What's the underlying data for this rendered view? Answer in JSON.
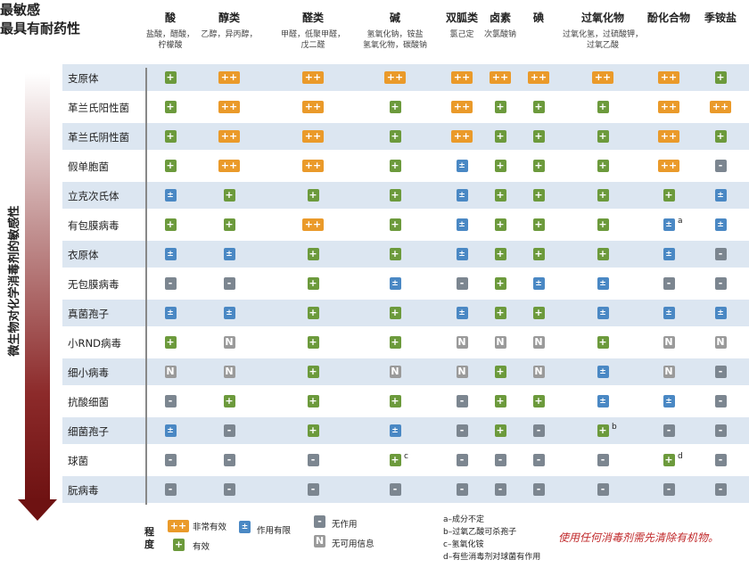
{
  "header": {
    "most_sensitive": "最敏感",
    "most_resistant": "最具有耐药性",
    "axis_label": "微生物对化学消毒剂的敏感性"
  },
  "columns": [
    {
      "title": "酸",
      "sub": "盐酸，醋酸，\n柠檬酸"
    },
    {
      "title": "醇类",
      "sub": "乙醇，异丙醇，"
    },
    {
      "title": "醛类",
      "sub": "甲醛，低聚甲醛，\n戊二醛"
    },
    {
      "title": "碱",
      "sub": "氢氧化钠，铵盐\n氢氧化物，碳酸钠"
    },
    {
      "title": "双胍类",
      "sub": "氯己定"
    },
    {
      "title": "卤素",
      "sub": "次氯酸钠"
    },
    {
      "title": "碘",
      "sub": ""
    },
    {
      "title": "过氧化物",
      "sub": "过氧化氢，过硫酸钾，\n过氧乙酸"
    },
    {
      "title": "酚化合物",
      "sub": ""
    },
    {
      "title": "季铵盐",
      "sub": ""
    }
  ],
  "chart_data": {
    "type": "table",
    "rows": [
      "支原体",
      "革兰氏阳性菌",
      "革兰氏阴性菌",
      "假单胞菌",
      "立克次氏体",
      "有包膜病毒",
      "衣原体",
      "无包膜病毒",
      "真菌孢子",
      "小RND病毒",
      "细小病毒",
      "抗酸细菌",
      "细菌孢子",
      "球菌",
      "朊病毒"
    ],
    "columns": [
      "酸",
      "醇类",
      "醛类",
      "碱",
      "双胍类",
      "卤素",
      "碘",
      "过氧化物",
      "酚化合物",
      "季铵盐"
    ],
    "values": [
      [
        "+",
        "++",
        "++",
        "++",
        "++",
        "++",
        "++",
        "++",
        "++",
        "+"
      ],
      [
        "+",
        "++",
        "++",
        "+",
        "++",
        "+",
        "+",
        "+",
        "++",
        "++"
      ],
      [
        "+",
        "++",
        "++",
        "+",
        "++",
        "+",
        "+",
        "+",
        "++",
        "+"
      ],
      [
        "+",
        "++",
        "++",
        "+",
        "±",
        "+",
        "+",
        "+",
        "++",
        "-"
      ],
      [
        "±",
        "+",
        "+",
        "+",
        "±",
        "+",
        "+",
        "+",
        "+",
        "±"
      ],
      [
        "+",
        "+",
        "++",
        "+",
        "±",
        "+",
        "+",
        "+",
        "±",
        "±"
      ],
      [
        "±",
        "±",
        "+",
        "+",
        "±",
        "+",
        "+",
        "+",
        "±",
        "-"
      ],
      [
        "-",
        "-",
        "+",
        "±",
        "-",
        "+",
        "±",
        "±",
        "-",
        "-"
      ],
      [
        "±",
        "±",
        "+",
        "+",
        "±",
        "+",
        "+",
        "±",
        "±",
        "±"
      ],
      [
        "+",
        "N",
        "+",
        "+",
        "N",
        "N",
        "N",
        "+",
        "N",
        "N"
      ],
      [
        "N",
        "N",
        "+",
        "N",
        "N",
        "+",
        "N",
        "±",
        "N",
        "-"
      ],
      [
        "-",
        "+",
        "+",
        "+",
        "-",
        "+",
        "+",
        "±",
        "±",
        "-"
      ],
      [
        "±",
        "-",
        "+",
        "±",
        "-",
        "+",
        "-",
        "+",
        "-",
        "-"
      ],
      [
        "-",
        "-",
        "-",
        "+",
        "-",
        "-",
        "-",
        "-",
        "+",
        "-"
      ],
      [
        "-",
        "-",
        "-",
        "-",
        "-",
        "-",
        "-",
        "-",
        "-",
        "-"
      ]
    ],
    "annotations": [
      {
        "row": "有包膜病毒",
        "column": "酚化合物",
        "mark": "a"
      },
      {
        "row": "细菌孢子",
        "column": "过氧化物",
        "mark": "b"
      },
      {
        "row": "球菌",
        "column": "碱",
        "mark": "c"
      },
      {
        "row": "球菌",
        "column": "酚化合物",
        "mark": "d"
      }
    ]
  },
  "legend": {
    "title": "程度",
    "items": [
      {
        "symbol": "++",
        "label": "非常有效"
      },
      {
        "symbol": "+",
        "label": "有效"
      },
      {
        "symbol": "±",
        "label": "作用有限"
      },
      {
        "symbol": "-",
        "label": "无作用"
      },
      {
        "symbol": "N",
        "label": "无可用信息"
      }
    ]
  },
  "notes": [
    "a–成分不定",
    "b–过氧乙酸可杀孢子",
    "c–氢氧化铵",
    "d–有些消毒剂对球菌有作用"
  ],
  "red_note": "使用任何消毒剂需先清除有机物。",
  "colors": {
    "very_effective": "#ea9a2a",
    "effective": "#6c9a3c",
    "limited": "#4a88c4",
    "none": "#7c8690",
    "no_info": "#9a9a9a",
    "band": "#dce6f1",
    "accent": "#c0282a"
  }
}
